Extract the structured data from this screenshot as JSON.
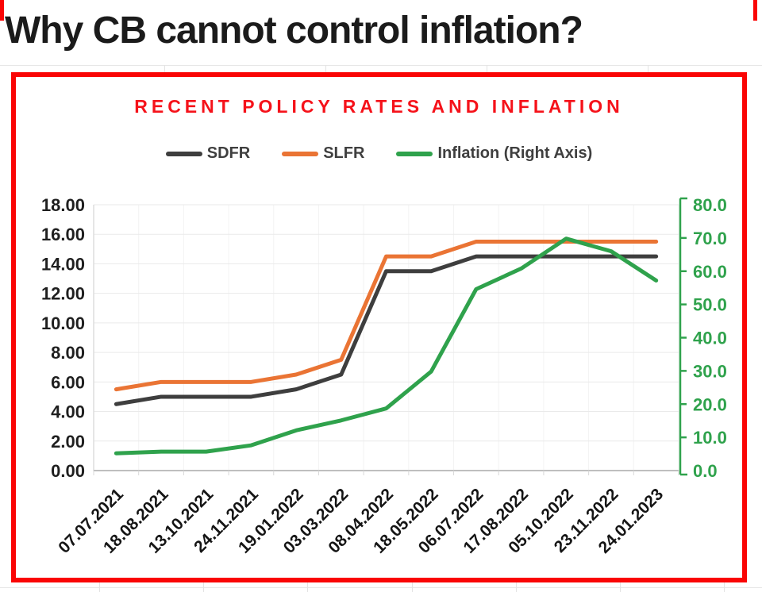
{
  "page": {
    "heading": "Why CB cannot control inflation?"
  },
  "chart": {
    "title": "RECENT POLICY RATES AND INFLATION",
    "title_color": "#f5121a",
    "border_color": "#fa0505",
    "background": "#ffffff"
  },
  "chart_data": {
    "type": "line",
    "title": "RECENT POLICY RATES AND INFLATION",
    "categories": [
      "07.07.2021",
      "18.08.2021",
      "13.10.2021",
      "24.11.2021",
      "19.01.2022",
      "03.03.2022",
      "08.04.2022",
      "18.05.2022",
      "06.07.2022",
      "17.08.2022",
      "05.10.2022",
      "23.11.2022",
      "24.01.2023"
    ],
    "series": [
      {
        "name": "SDFR",
        "axis": "left",
        "color": "#3e3e3e",
        "values": [
          4.5,
          5.0,
          5.0,
          5.0,
          5.5,
          6.5,
          13.5,
          13.5,
          14.5,
          14.5,
          14.5,
          14.5,
          14.5
        ]
      },
      {
        "name": "SLFR",
        "axis": "left",
        "color": "#ea7434",
        "values": [
          5.5,
          6.0,
          6.0,
          6.0,
          6.5,
          7.5,
          14.5,
          14.5,
          15.5,
          15.5,
          15.5,
          15.5,
          15.5
        ]
      },
      {
        "name": "Inflation (Right Axis)",
        "axis": "right",
        "color": "#2fa24c",
        "values": [
          5.2,
          5.7,
          5.7,
          7.6,
          12.1,
          15.1,
          18.7,
          29.8,
          54.6,
          60.8,
          69.8,
          66.0,
          57.2
        ]
      }
    ],
    "left_axis": {
      "min": 0,
      "max": 18,
      "step": 2,
      "ticks": [
        "0.00",
        "2.00",
        "4.00",
        "6.00",
        "8.00",
        "10.00",
        "12.00",
        "14.00",
        "16.00",
        "18.00"
      ],
      "color": "#1f1f1f"
    },
    "right_axis": {
      "min": 0,
      "max": 80,
      "step": 10,
      "ticks": [
        "0.0",
        "10.0",
        "20.0",
        "30.0",
        "40.0",
        "50.0",
        "60.0",
        "70.0",
        "80.0"
      ],
      "color": "#2fa24c"
    },
    "grid": true,
    "legend_position": "top",
    "xlabel": "",
    "ylabel": ""
  }
}
